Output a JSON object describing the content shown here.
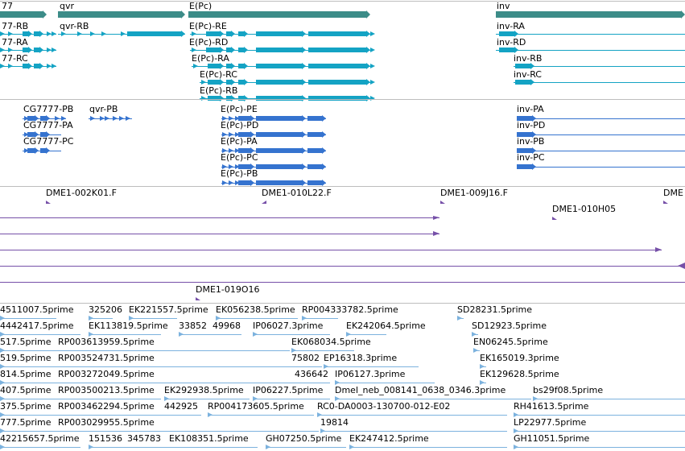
{
  "colors": {
    "gene": "#3c8c88",
    "transcript_top": "#14a3c4",
    "transcript_blue": "#3573cf",
    "clone": "#7650a8",
    "est": "#7cb2de",
    "separator": "#bdbdbd",
    "text": "#000000"
  },
  "tracks": {
    "genes": [
      "77",
      "qvr",
      "E(Pc)",
      "inv"
    ],
    "transcripts_a": [
      "77-RB",
      "77-RA",
      "77-RC",
      "qvr-RB",
      "E(Pc)-RE",
      "E(Pc)-RD",
      "E(Pc)-RA",
      "E(Pc)-RC",
      "E(Pc)-RB",
      "inv-RA",
      "inv-RD",
      "inv-RB",
      "inv-RC"
    ],
    "transcripts_b": [
      "CG7777-PB",
      "CG7777-PA",
      "CG7777-PC",
      "qvr-PB",
      "E(Pc)-PE",
      "E(Pc)-PD",
      "E(Pc)-PA",
      "E(Pc)-PC",
      "E(Pc)-PB",
      "inv-PA",
      "inv-PD",
      "inv-PB",
      "inv-PC"
    ],
    "clones": [
      "DME1-002K01.F",
      "DME1-010L22.F",
      "DME1-009J16.F",
      "DME",
      "DME1-010H05",
      "DME1-019O16"
    ],
    "ests": [
      "4511007.5prime",
      "325206",
      "EK221557.5prime",
      "EK056238.5prime",
      "RP004333782.5prime",
      "SD28231.5prime",
      "4442417.5prime",
      "EK113819.5prime",
      "33852",
      "49968",
      "IP06027.3prime",
      "EK242064.5prime",
      "SD12923.5prime",
      "517.5prime",
      "RP003613959.5prime",
      "EK068034.5prime",
      "EN06245.5prime",
      "519.5prime",
      "RP003524731.5prime",
      "75802",
      "EP16318.3prime",
      "EK165019.3prime",
      "814.5prime",
      "RP003272049.5prime",
      "436642",
      "IP06127.3prime",
      "EK129628.5prime",
      "407.5prime",
      "RP003500213.5prime",
      "EK292938.5prime",
      "IP06227.5prime",
      "Dmel_neb_008141_0638_0346.3prime",
      "bs29f08.5prime",
      "375.5prime",
      "RP003462294.5prime",
      "442925",
      "RP004173605.5prime",
      "RC0-DA0003-130700-012-E02",
      "RH41613.5prime",
      "777.5prime",
      "RP003029955.5prime",
      "19814",
      "LP22977.5prime",
      "42215657.5prime",
      "151536",
      "345783",
      "EK108351.5prime",
      "GH07250.5prime",
      "EK247412.5prime",
      "GH11051.5prime"
    ]
  }
}
